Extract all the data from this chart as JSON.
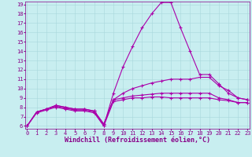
{
  "xlabel": "Windchill (Refroidissement éolien,°C)",
  "x": [
    0,
    1,
    2,
    3,
    4,
    5,
    6,
    7,
    8,
    9,
    10,
    11,
    12,
    13,
    14,
    15,
    16,
    17,
    18,
    19,
    20,
    21,
    22,
    23
  ],
  "lines": [
    [
      6.0,
      7.5,
      7.8,
      8.1,
      7.9,
      7.7,
      7.7,
      7.5,
      6.0,
      9.5,
      12.3,
      14.5,
      16.5,
      18.0,
      19.2,
      19.2,
      16.5,
      14.0,
      11.5,
      11.5,
      10.5,
      9.5,
      9.0,
      8.8
    ],
    [
      6.0,
      7.5,
      7.8,
      8.2,
      8.0,
      7.8,
      7.8,
      7.6,
      6.2,
      8.8,
      9.5,
      10.0,
      10.3,
      10.6,
      10.8,
      11.0,
      11.0,
      11.0,
      11.2,
      11.2,
      10.3,
      9.8,
      9.0,
      8.8
    ],
    [
      6.0,
      7.5,
      7.8,
      8.2,
      8.0,
      7.8,
      7.8,
      7.6,
      6.2,
      8.8,
      9.0,
      9.2,
      9.3,
      9.4,
      9.5,
      9.5,
      9.5,
      9.5,
      9.5,
      9.5,
      9.0,
      8.8,
      8.5,
      8.5
    ],
    [
      6.0,
      7.4,
      7.7,
      8.0,
      7.8,
      7.6,
      7.6,
      7.4,
      6.0,
      8.6,
      8.8,
      9.0,
      9.0,
      9.1,
      9.1,
      9.0,
      9.0,
      9.0,
      9.0,
      9.0,
      8.8,
      8.7,
      8.5,
      8.5
    ]
  ],
  "line_color": "#aa00aa",
  "marker": "+",
  "markersize": 3,
  "linewidth": 0.8,
  "ylim": [
    6,
    19
  ],
  "yticks": [
    6,
    7,
    8,
    9,
    10,
    11,
    12,
    13,
    14,
    15,
    16,
    17,
    18,
    19
  ],
  "xlim": [
    0,
    23
  ],
  "xticks": [
    0,
    1,
    2,
    3,
    4,
    5,
    6,
    7,
    8,
    9,
    10,
    11,
    12,
    13,
    14,
    15,
    16,
    17,
    18,
    19,
    20,
    21,
    22,
    23
  ],
  "bg_color": "#c8eef0",
  "grid_color": "#a8d8dc",
  "tick_label_fontsize": 5.0,
  "xlabel_fontsize": 6.0,
  "label_color": "#880088",
  "spine_color": "#880088"
}
